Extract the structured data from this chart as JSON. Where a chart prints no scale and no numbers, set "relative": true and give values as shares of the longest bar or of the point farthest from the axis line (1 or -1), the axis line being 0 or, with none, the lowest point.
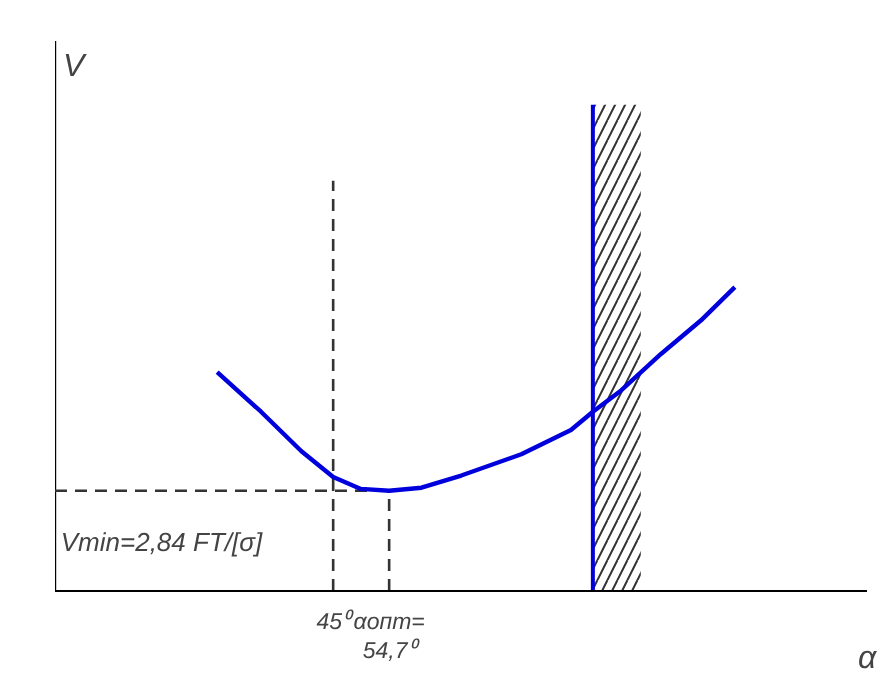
{
  "chart_data": {
    "type": "line",
    "relative": true,
    "xlabel": "α",
    "x": [
      24.9,
      32.5,
      39.5,
      45,
      49.8,
      54.7,
      60.3,
      67.2,
      77.6,
      86.2,
      90,
      94.9,
      101.8,
      108.7,
      114.6
    ],
    "series": [
      {
        "color": "#0000dd",
        "values": [
          0.72,
          0.59,
          0.46,
          0.375,
          0.336,
          0.33,
          0.34,
          0.38,
          0.45,
          0.53,
          0.59,
          0.66,
          0.78,
          0.89,
          1
        ]
      }
    ],
    "xlim": [
      -3.2,
      137.5
    ],
    "xticks": [
      {
        "value": 45,
        "label": "45⁰"
      },
      {
        "value": 54.7,
        "label": "αопт=54,7⁰"
      }
    ],
    "ref_lines": [
      {
        "axis": "x",
        "value": 45,
        "color": "#333333",
        "line_style": "dashed"
      },
      {
        "axis": "x",
        "value": 54.7,
        "color": "#333333",
        "line_style": "dashed"
      },
      {
        "axis": "y",
        "value": 0.33,
        "color": "#333333",
        "line_style": "dashed"
      },
      {
        "axis": "x",
        "value": 90,
        "color": "#0000dd",
        "line_style": "solid"
      }
    ],
    "bands": [
      {
        "axis": "x",
        "from": 90,
        "to": 98.3,
        "color": "#333333"
      }
    ],
    "annotations": [
      "V",
      "Vmin=2,84 FT/[σ]"
    ],
    "grid": false,
    "marker": "none",
    "line_style": "solid"
  }
}
